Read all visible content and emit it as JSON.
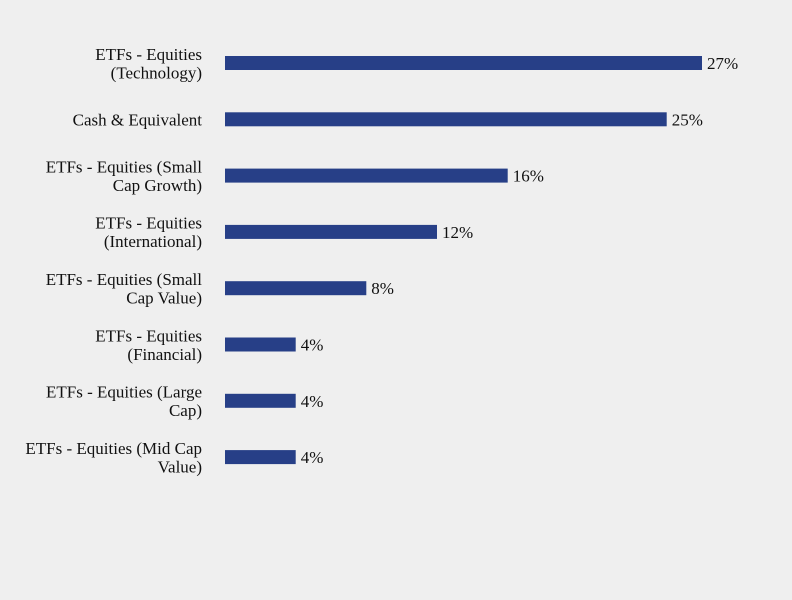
{
  "chart_data": {
    "type": "bar",
    "orientation": "horizontal",
    "categories": [
      [
        "ETFs - Equities",
        "(Technology)"
      ],
      [
        "Cash & Equivalent"
      ],
      [
        "ETFs - Equities (Small",
        "Cap Growth)"
      ],
      [
        "ETFs - Equities",
        "(International)"
      ],
      [
        "ETFs - Equities (Small",
        "Cap Value)"
      ],
      [
        "ETFs - Equities",
        "(Financial)"
      ],
      [
        "ETFs - Equities (Large",
        "Cap)"
      ],
      [
        "ETFs - Equities (Mid Cap",
        "Value)"
      ]
    ],
    "values": [
      27,
      25,
      16,
      12,
      8,
      4,
      4,
      4
    ],
    "value_labels": [
      "27%",
      "25%",
      "16%",
      "12%",
      "8%",
      "4%",
      "4%",
      "4%"
    ],
    "xlim": [
      0,
      27
    ],
    "grid": false,
    "legend": "none",
    "bar_color": "#273f87",
    "background_color": "#efefef"
  }
}
